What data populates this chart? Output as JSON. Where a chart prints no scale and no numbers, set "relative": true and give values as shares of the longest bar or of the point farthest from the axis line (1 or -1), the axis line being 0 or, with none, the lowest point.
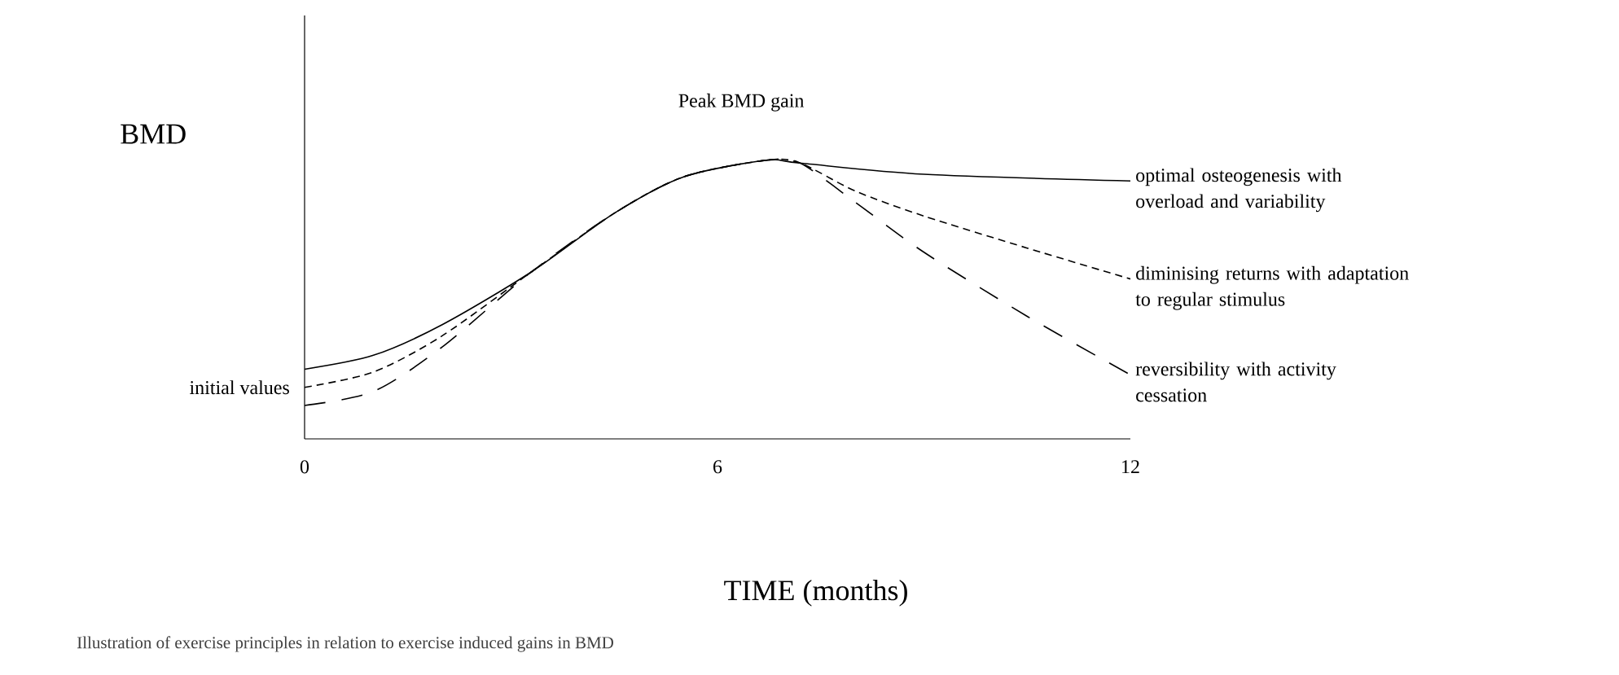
{
  "chart_data": {
    "type": "line",
    "relative": true,
    "ylabel": "BMD",
    "xlabel": "TIME (months)",
    "xlim": [
      0,
      12
    ],
    "xticks": [
      0,
      6,
      12
    ],
    "grid": false,
    "series": [
      {
        "name": "optimal osteogenesis with overload and variability",
        "color": "#000000",
        "line_style": "solid",
        "x": [
          0,
          1,
          2,
          3.3,
          4.5,
          5.5,
          6.7,
          7.2,
          9,
          12
        ],
        "values": [
          0.25,
          0.3,
          0.41,
          0.6,
          0.81,
          0.94,
          1.0,
          0.99,
          0.95,
          0.926
        ]
      },
      {
        "name": "diminising returns with adaptation to regular stimulus",
        "color": "#000000",
        "line_style": "dashed",
        "x": [
          0,
          1,
          2,
          3.3,
          4.5,
          5.5,
          6.7,
          7.2,
          8,
          9,
          10.5,
          12
        ],
        "values": [
          0.185,
          0.24,
          0.37,
          0.6,
          0.81,
          0.94,
          1.0,
          0.99,
          0.89,
          0.8,
          0.685,
          0.574
        ]
      },
      {
        "name": "reversibility with activity cessation",
        "color": "#000000",
        "line_style": "dashed",
        "x": [
          0,
          1,
          2,
          3.3,
          4.5,
          5.5,
          6.7,
          7.2,
          8,
          9,
          10.5,
          12
        ],
        "values": [
          0.12,
          0.17,
          0.33,
          0.6,
          0.81,
          0.94,
          1.0,
          0.99,
          0.85,
          0.67,
          0.44,
          0.23
        ]
      }
    ],
    "annotations": [
      {
        "text": "Peak BMD gain",
        "x": 6.7,
        "y": 1.0
      },
      {
        "text": "initial values",
        "x": 0,
        "y": 0.185
      },
      "Illustration of exercise principles in relation to exercise induced gains in BMD"
    ]
  }
}
